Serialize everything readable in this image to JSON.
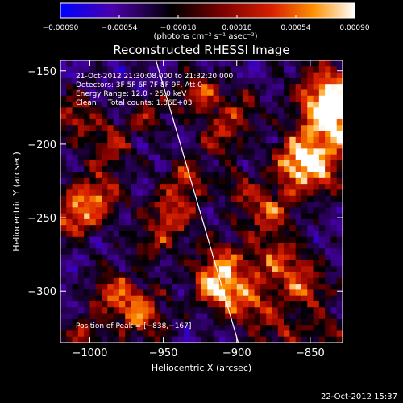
{
  "chart_data": {
    "type": "heatmap",
    "title": "Reconstructed RHESSI Image",
    "xlabel": "Heliocentric X (arcsec)",
    "ylabel": "Heliocentric Y (arcsec)",
    "xlim": [
      -1020,
      -828
    ],
    "ylim": [
      -335,
      -143
    ],
    "x_ticks": [
      -1000,
      -950,
      -900,
      -850
    ],
    "x_tick_labels": [
      "−1000",
      "−950",
      "−900",
      "−850"
    ],
    "y_ticks": [
      -150,
      -200,
      -250,
      -300
    ],
    "y_tick_labels": [
      "−150",
      "−200",
      "−250",
      "−300"
    ],
    "colorbar": {
      "range": [
        -0.0009,
        0.0009
      ],
      "ticks": [
        -0.0009,
        -0.00054,
        -0.00018,
        0.00018,
        0.00054,
        0.0009
      ],
      "tick_labels": [
        "−0.00090",
        "−0.00054",
        "−0.00018",
        "0.00018",
        "0.00054",
        "0.00090"
      ],
      "unit_label": "(photons cm⁻² s⁻¹ asec⁻²)",
      "colors": [
        "#0000ff",
        "#4b00a8",
        "#000000",
        "#7a0000",
        "#d82000",
        "#ff9000",
        "#ffffff"
      ]
    },
    "info_lines": [
      "21-Oct-2012 21:30:08.000 to 21:32:20.000",
      "Detectors: 3F 5F 6F 7F 8F 9F, Att 0",
      "Energy Range: 12.0 - 25.0 keV",
      "Clean     Total counts: 1.86E+03"
    ],
    "peak_label": "Position of Peak = [−838,−167]",
    "peak": [
      -838,
      -167
    ],
    "limb_line": {
      "x_start": -955,
      "y_start": -143,
      "x_end": -899,
      "y_end": -335
    },
    "timestamp": "22-Oct-2012 15:37",
    "grid": false
  }
}
